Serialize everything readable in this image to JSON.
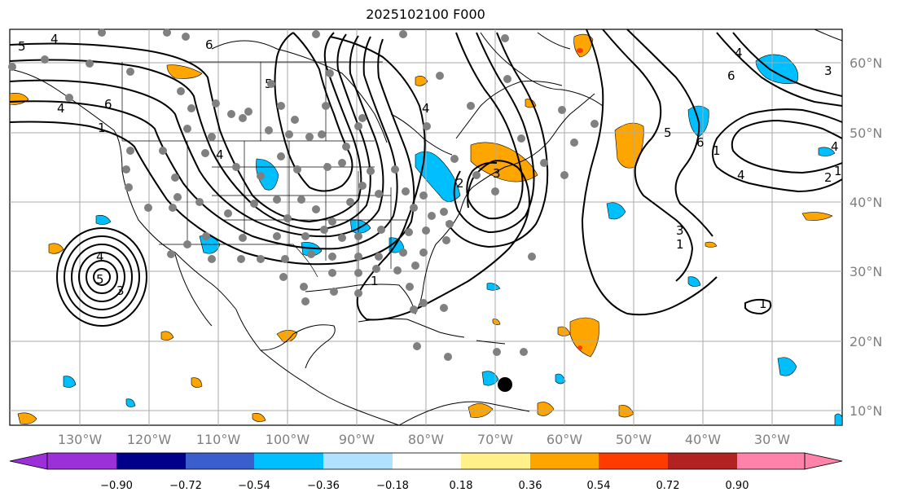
{
  "title": "2025102100 F000",
  "longitude_labels": [
    "130°W",
    "120°W",
    "110°W",
    "100°W",
    "90°W",
    "80°W",
    "70°W",
    "60°W",
    "50°W",
    "40°W",
    "30°W"
  ],
  "latitude_labels": [
    "60°N",
    "50°N",
    "40°N",
    "30°N",
    "20°N",
    "10°N"
  ],
  "colorbar": {
    "ticks": [
      "−0.90",
      "−0.72",
      "−0.54",
      "−0.36",
      "−0.18",
      "0.18",
      "0.36",
      "0.54",
      "0.72",
      "0.90"
    ],
    "colors": [
      "#9b30d9",
      "#00008b",
      "#3a5fcd",
      "#00bfff",
      "#b0e2ff",
      "#ffffff",
      "#fff08a",
      "#ffa500",
      "#ff3c00",
      "#b22222",
      "#ff82ab"
    ]
  },
  "contour_labels": [
    "5",
    "4",
    "4",
    "6",
    "1",
    "6",
    "4",
    "5",
    "4",
    "3",
    "2",
    "1",
    "4",
    "5",
    "3",
    "6",
    "4",
    "3",
    "4",
    "2",
    "1",
    "3",
    "1",
    "1",
    "1",
    "6",
    "5",
    "4"
  ],
  "colors": {
    "positive": "#ffa500",
    "negative": "#00bfff",
    "stations": "#808080",
    "marker": "#000000"
  }
}
